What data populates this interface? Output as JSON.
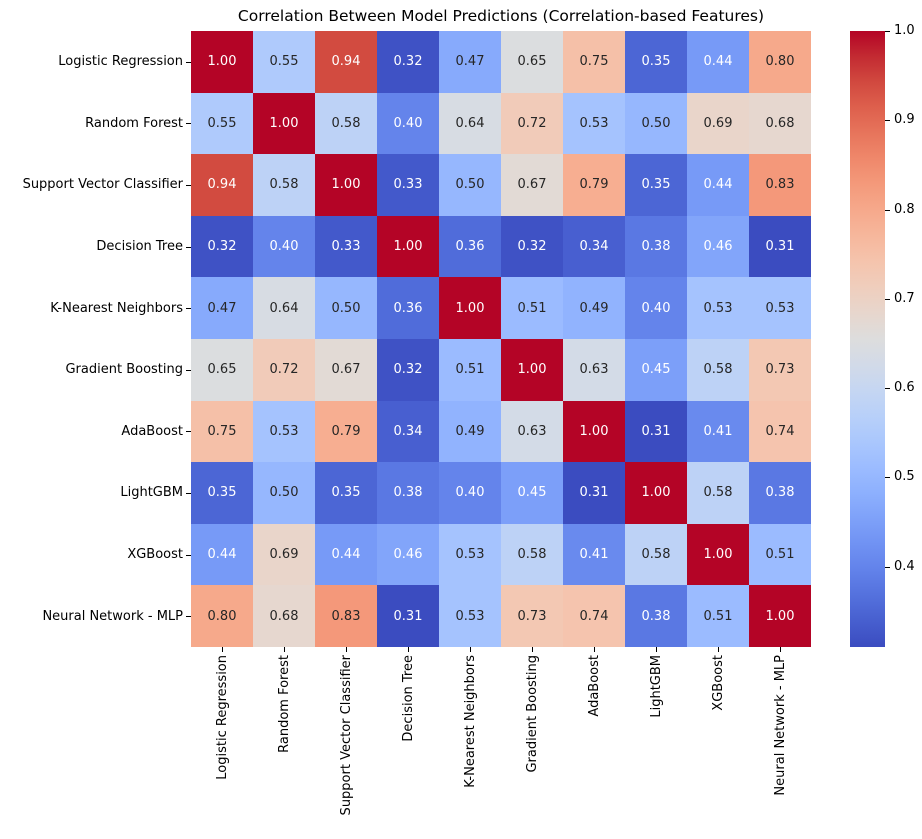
{
  "chart_data": {
    "type": "heatmap",
    "title": "Correlation Between Model Predictions (Correlation-based Features)",
    "x_categories": [
      "Logistic Regression",
      "Random Forest",
      "Support Vector Classifier",
      "Decision Tree",
      "K-Nearest Neighbors",
      "Gradient Boosting",
      "AdaBoost",
      "LightGBM",
      "XGBoost",
      "Neural Network - MLP"
    ],
    "y_categories": [
      "Logistic Regression",
      "Random Forest",
      "Support Vector Classifier",
      "Decision Tree",
      "K-Nearest Neighbors",
      "Gradient Boosting",
      "AdaBoost",
      "LightGBM",
      "XGBoost",
      "Neural Network - MLP"
    ],
    "matrix": [
      [
        1.0,
        0.55,
        0.94,
        0.32,
        0.47,
        0.65,
        0.75,
        0.35,
        0.44,
        0.8
      ],
      [
        0.55,
        1.0,
        0.58,
        0.4,
        0.64,
        0.72,
        0.53,
        0.5,
        0.69,
        0.68
      ],
      [
        0.94,
        0.58,
        1.0,
        0.33,
        0.5,
        0.67,
        0.79,
        0.35,
        0.44,
        0.83
      ],
      [
        0.32,
        0.4,
        0.33,
        1.0,
        0.36,
        0.32,
        0.34,
        0.38,
        0.46,
        0.31
      ],
      [
        0.47,
        0.64,
        0.5,
        0.36,
        1.0,
        0.51,
        0.49,
        0.4,
        0.53,
        0.53
      ],
      [
        0.65,
        0.72,
        0.67,
        0.32,
        0.51,
        1.0,
        0.63,
        0.45,
        0.58,
        0.73
      ],
      [
        0.75,
        0.53,
        0.79,
        0.34,
        0.49,
        0.63,
        1.0,
        0.31,
        0.41,
        0.74
      ],
      [
        0.35,
        0.5,
        0.35,
        0.38,
        0.4,
        0.45,
        0.31,
        1.0,
        0.58,
        0.38
      ],
      [
        0.44,
        0.69,
        0.44,
        0.46,
        0.53,
        0.58,
        0.41,
        0.58,
        1.0,
        0.51
      ],
      [
        0.8,
        0.68,
        0.83,
        0.31,
        0.53,
        0.73,
        0.74,
        0.38,
        0.51,
        1.0
      ]
    ],
    "vmin": 0.31,
    "vmax": 1.0,
    "colormap": "coolwarm",
    "annotation_decimals": 2,
    "x_tick_rotation": 90,
    "grid": false,
    "colorbar": {
      "position": "right",
      "tick_values": [
        1.0,
        0.9,
        0.8,
        0.7,
        0.6,
        0.5,
        0.4
      ],
      "tick_labels": [
        "1.0",
        "0.9",
        "0.8",
        "0.7",
        "0.6",
        "0.5",
        "0.4"
      ]
    },
    "colors": {
      "background": "#ffffff",
      "text": "#000000",
      "annotation_dark": "#262626",
      "annotation_light": "#ffffff",
      "cmap_low": "#3b4cc0",
      "cmap_mid": "#dddddd",
      "cmap_high": "#b40426"
    }
  }
}
